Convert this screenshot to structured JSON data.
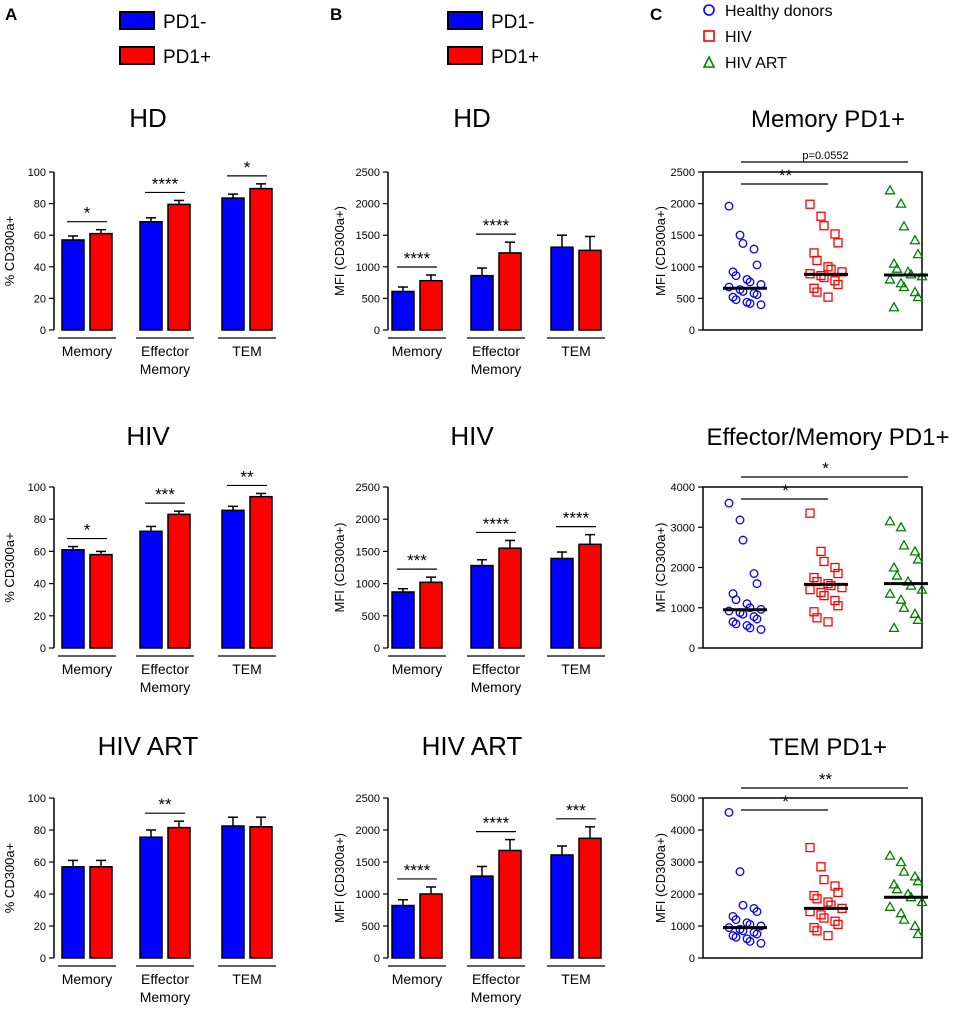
{
  "figure": {
    "panel_letters": [
      "A",
      "B",
      "C"
    ],
    "legend_bars": [
      {
        "label": "PD1-",
        "color": "#0000ff"
      },
      {
        "label": "PD1+",
        "color": "#ff0000"
      }
    ],
    "legend_groups": [
      {
        "label": "Healthy donors",
        "marker": "circle",
        "color": "#0000ff"
      },
      {
        "label": "HIV",
        "marker": "square",
        "color": "#ff0000"
      },
      {
        "label": "HIV ART",
        "marker": "triangle",
        "color": "#008000"
      }
    ]
  },
  "chart_data": [
    {
      "type": "bar",
      "panel": "A",
      "title": "HD",
      "ylabel": "% CD300a+",
      "ylim": [
        0,
        100
      ],
      "yticks": [
        0,
        20,
        40,
        60,
        80,
        100
      ],
      "groups": [
        [
          "Memory"
        ],
        [
          "Effector",
          "Memory"
        ],
        [
          "TEM"
        ]
      ],
      "series": [
        {
          "name": "PD1-",
          "color": "#0000ff",
          "values": [
            57,
            68.5,
            83.5
          ],
          "errors": [
            2.5,
            2.5,
            2.5
          ]
        },
        {
          "name": "PD1+",
          "color": "#ff0000",
          "values": [
            61,
            79.5,
            89.5
          ],
          "errors": [
            2.5,
            2.5,
            3
          ]
        }
      ],
      "significance": [
        "*",
        "****",
        "*"
      ]
    },
    {
      "type": "bar",
      "panel": "A",
      "title": "HIV",
      "ylabel": "% CD300a+",
      "ylim": [
        0,
        100
      ],
      "yticks": [
        0,
        20,
        40,
        60,
        80,
        100
      ],
      "groups": [
        [
          "Memory"
        ],
        [
          "Effector",
          "Memory"
        ],
        [
          "TEM"
        ]
      ],
      "series": [
        {
          "name": "PD1-",
          "color": "#0000ff",
          "values": [
            61,
            72.5,
            85.5
          ],
          "errors": [
            2,
            3,
            2.5
          ]
        },
        {
          "name": "PD1+",
          "color": "#ff0000",
          "values": [
            58,
            83,
            94
          ],
          "errors": [
            2,
            2,
            2
          ]
        }
      ],
      "significance": [
        "*",
        "***",
        "**"
      ]
    },
    {
      "type": "bar",
      "panel": "A",
      "title": "HIV ART",
      "ylabel": "% CD300a+",
      "ylim": [
        0,
        100
      ],
      "yticks": [
        0,
        20,
        40,
        60,
        80,
        100
      ],
      "groups": [
        [
          "Memory"
        ],
        [
          "Effector",
          "Memory"
        ],
        [
          "TEM"
        ]
      ],
      "series": [
        {
          "name": "PD1-",
          "color": "#0000ff",
          "values": [
            57,
            75.5,
            82.5
          ],
          "errors": [
            4,
            4.5,
            5.5
          ]
        },
        {
          "name": "PD1+",
          "color": "#ff0000",
          "values": [
            57,
            81.5,
            82
          ],
          "errors": [
            4,
            4,
            6
          ]
        }
      ],
      "significance": [
        "",
        "**",
        ""
      ]
    },
    {
      "type": "bar",
      "panel": "B",
      "title": "HD",
      "ylabel": "MFI (CD300a+)",
      "ylim": [
        0,
        2500
      ],
      "yticks": [
        0,
        500,
        1000,
        1500,
        2000,
        2500
      ],
      "groups": [
        [
          "Memory"
        ],
        [
          "Effector",
          "Memory"
        ],
        [
          "TEM"
        ]
      ],
      "series": [
        {
          "name": "PD1-",
          "color": "#0000ff",
          "values": [
            610,
            860,
            1310
          ],
          "errors": [
            70,
            120,
            190
          ]
        },
        {
          "name": "PD1+",
          "color": "#ff0000",
          "values": [
            780,
            1220,
            1260
          ],
          "errors": [
            90,
            170,
            220
          ]
        }
      ],
      "significance": [
        "****",
        "****",
        ""
      ]
    },
    {
      "type": "bar",
      "panel": "B",
      "title": "HIV",
      "ylabel": "MFI (CD300a+)",
      "ylim": [
        0,
        2500
      ],
      "yticks": [
        0,
        500,
        1000,
        1500,
        2000,
        2500
      ],
      "groups": [
        [
          "Memory"
        ],
        [
          "Effector",
          "Memory"
        ],
        [
          "TEM"
        ]
      ],
      "series": [
        {
          "name": "PD1-",
          "color": "#0000ff",
          "values": [
            870,
            1280,
            1390
          ],
          "errors": [
            50,
            90,
            100
          ]
        },
        {
          "name": "PD1+",
          "color": "#ff0000",
          "values": [
            1020,
            1550,
            1610
          ],
          "errors": [
            80,
            120,
            150
          ]
        }
      ],
      "significance": [
        "***",
        "****",
        "****"
      ]
    },
    {
      "type": "bar",
      "panel": "B",
      "title": "HIV ART",
      "ylabel": "MFI (CD300a+)",
      "ylim": [
        0,
        2500
      ],
      "yticks": [
        0,
        500,
        1000,
        1500,
        2000,
        2500
      ],
      "groups": [
        [
          "Memory"
        ],
        [
          "Effector",
          "Memory"
        ],
        [
          "TEM"
        ]
      ],
      "series": [
        {
          "name": "PD1-",
          "color": "#0000ff",
          "values": [
            820,
            1280,
            1610
          ],
          "errors": [
            90,
            150,
            140
          ]
        },
        {
          "name": "PD1+",
          "color": "#ff0000",
          "values": [
            1000,
            1680,
            1870
          ],
          "errors": [
            110,
            170,
            180
          ]
        }
      ],
      "significance": [
        "****",
        "****",
        "***"
      ]
    },
    {
      "type": "scatter",
      "panel": "C",
      "title": "Memory PD1+",
      "ylabel": "MFI (CD300a+)",
      "ylim": [
        0,
        2500
      ],
      "yticks": [
        0,
        500,
        1000,
        1500,
        2000,
        2500
      ],
      "groups": [
        {
          "name": "Healthy donors",
          "marker": "circle",
          "color": "#0000ff",
          "median": 660,
          "values": [
            1960,
            1500,
            1370,
            1280,
            1030,
            920,
            860,
            800,
            760,
            720,
            680,
            640,
            610,
            580,
            560,
            520,
            480,
            440,
            420,
            400
          ]
        },
        {
          "name": "HIV",
          "marker": "square",
          "color": "#ff0000",
          "median": 880,
          "values": [
            1990,
            1800,
            1650,
            1520,
            1380,
            1220,
            1100,
            1000,
            960,
            920,
            890,
            860,
            830,
            780,
            720,
            660,
            600,
            520
          ]
        },
        {
          "name": "HIV ART",
          "marker": "triangle",
          "color": "#008000",
          "median": 870,
          "values": [
            2210,
            2000,
            1640,
            1420,
            1200,
            1050,
            970,
            920,
            880,
            850,
            800,
            740,
            680,
            600,
            520,
            360
          ]
        }
      ],
      "comparisons": [
        {
          "from": 0,
          "to": 1,
          "label": "**"
        },
        {
          "from": 0,
          "to": 2,
          "label": "p=0.0552"
        }
      ]
    },
    {
      "type": "scatter",
      "panel": "C",
      "title": "Effector/Memory PD1+",
      "ylabel": "MFI (CD300a+)",
      "ylim": [
        0,
        4000
      ],
      "yticks": [
        0,
        1000,
        2000,
        3000,
        4000
      ],
      "groups": [
        {
          "name": "Healthy donors",
          "marker": "circle",
          "color": "#0000ff",
          "median": 950,
          "values": [
            3600,
            3180,
            2680,
            1850,
            1600,
            1350,
            1200,
            1100,
            1000,
            960,
            920,
            880,
            840,
            780,
            720,
            650,
            600,
            560,
            500,
            460
          ]
        },
        {
          "name": "HIV",
          "marker": "square",
          "color": "#ff0000",
          "median": 1580,
          "values": [
            3350,
            2400,
            2150,
            2000,
            1850,
            1750,
            1650,
            1600,
            1550,
            1500,
            1450,
            1380,
            1300,
            1180,
            1050,
            900,
            750,
            650
          ]
        },
        {
          "name": "HIV ART",
          "marker": "triangle",
          "color": "#008000",
          "median": 1600,
          "values": [
            3150,
            3000,
            2550,
            2400,
            2200,
            2000,
            1800,
            1650,
            1550,
            1450,
            1350,
            1200,
            1000,
            850,
            700,
            500
          ]
        }
      ],
      "comparisons": [
        {
          "from": 0,
          "to": 1,
          "label": "*"
        },
        {
          "from": 0,
          "to": 2,
          "label": "*"
        }
      ]
    },
    {
      "type": "scatter",
      "panel": "C",
      "title": "TEM PD1+",
      "ylabel": "MFI (CD300a+)",
      "ylim": [
        0,
        5000
      ],
      "yticks": [
        0,
        1000,
        2000,
        3000,
        4000,
        5000
      ],
      "groups": [
        {
          "name": "Healthy donors",
          "marker": "circle",
          "color": "#0000ff",
          "median": 950,
          "values": [
            4550,
            2700,
            1650,
            1550,
            1450,
            1300,
            1200,
            1100,
            1050,
            1000,
            950,
            900,
            850,
            800,
            750,
            700,
            650,
            600,
            520,
            460
          ]
        },
        {
          "name": "HIV",
          "marker": "square",
          "color": "#ff0000",
          "median": 1550,
          "values": [
            3450,
            2850,
            2450,
            2250,
            2050,
            1950,
            1850,
            1750,
            1650,
            1550,
            1450,
            1350,
            1250,
            1150,
            1050,
            950,
            850,
            700
          ]
        },
        {
          "name": "HIV ART",
          "marker": "triangle",
          "color": "#008000",
          "median": 1900,
          "values": [
            3200,
            3000,
            2700,
            2550,
            2400,
            2300,
            2150,
            2000,
            1900,
            1750,
            1600,
            1400,
            1200,
            1000,
            750
          ]
        }
      ],
      "comparisons": [
        {
          "from": 0,
          "to": 1,
          "label": "*"
        },
        {
          "from": 0,
          "to": 2,
          "label": "**"
        }
      ]
    }
  ]
}
